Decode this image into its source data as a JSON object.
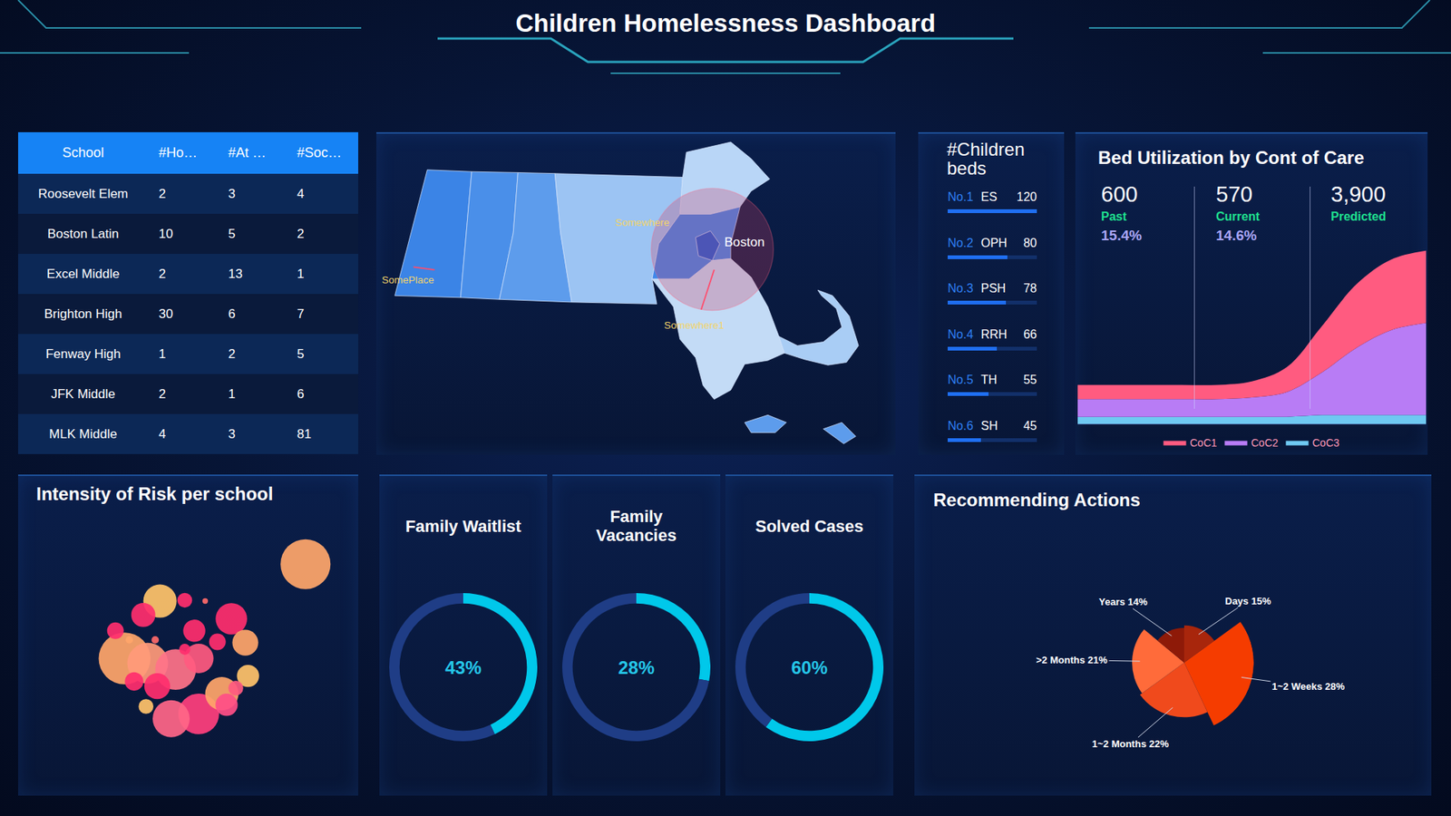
{
  "title": "Children Homelessness Dashboard",
  "table": {
    "columns": [
      "School",
      "#Ho…",
      "#At …",
      "#Soc…"
    ],
    "rows": [
      [
        "Roosevelt Elem",
        2,
        3,
        4
      ],
      [
        "Boston Latin",
        10,
        5,
        2
      ],
      [
        "Excel Middle",
        2,
        13,
        1
      ],
      [
        "Brighton High",
        30,
        6,
        7
      ],
      [
        "Fenway High",
        1,
        2,
        5
      ],
      [
        "JFK Middle",
        2,
        1,
        6
      ],
      [
        "MLK Middle",
        4,
        3,
        81
      ]
    ]
  },
  "map": {
    "labels": [
      "Somewhere",
      "SomePlace",
      "Somewhere1",
      "Boston"
    ]
  },
  "chart_data": [
    {
      "type": "bar",
      "orientation": "horizontal",
      "title": "#Children beds",
      "ranks": [
        "No.1",
        "No.2",
        "No.3",
        "No.4",
        "No.5",
        "No.6"
      ],
      "categories": [
        "ES",
        "OPH",
        "PSH",
        "RRH",
        "TH",
        "SH"
      ],
      "values": [
        120,
        80,
        78,
        66,
        55,
        45
      ],
      "xlim": [
        0,
        120
      ],
      "tick_labels": false,
      "data_labels": true,
      "color": "#1f6ff2"
    },
    {
      "type": "area",
      "stacked": true,
      "title": "Bed Utilization by Cont of Care",
      "stats": [
        {
          "value": "600",
          "label": "Past",
          "change": "15.4%"
        },
        {
          "value": "570",
          "label": "Current",
          "change": "14.6%"
        },
        {
          "value": "3,900",
          "label": "Predicted"
        }
      ],
      "x": [
        0,
        1,
        2,
        3,
        4,
        5,
        6,
        7,
        8,
        9,
        10
      ],
      "xlim": [
        0,
        10
      ],
      "ylim": [
        0,
        100
      ],
      "tick_labels": false,
      "grid": false,
      "legend": "bottom",
      "series": [
        {
          "name": "CoC1",
          "color": "#ff5b80",
          "values": [
            8,
            8,
            8,
            8,
            8,
            9,
            14,
            26,
            36,
            40,
            41
          ]
        },
        {
          "name": "CoC2",
          "color": "#b87cf5",
          "values": [
            10,
            10,
            10,
            10,
            10,
            11,
            14,
            24,
            38,
            48,
            52
          ]
        },
        {
          "name": "CoC3",
          "color": "#6fc9f2",
          "values": [
            4,
            4,
            4,
            4,
            4,
            4,
            4,
            5,
            5,
            5,
            5
          ]
        }
      ]
    },
    {
      "type": "scatter",
      "marker": "bubble",
      "title": "Intensity of Risk per school",
      "xlim": [
        0,
        100
      ],
      "ylim": [
        0,
        100
      ],
      "tick_labels": false,
      "grid": false,
      "x": [
        84.5,
        41.7,
        31.3,
        38.1,
        46.3,
        53.1,
        45.0,
        62.7,
        66.8,
        59.9,
        36.8,
        51.8,
        58.6,
        53.1,
        67.6,
        49.0,
        37.6,
        40.9,
        28.6,
        61.3,
        55.0,
        40.3,
        32.7,
        34.1,
        49.0,
        64.0
      ],
      "y": [
        84.0,
        70.7,
        50.0,
        48.3,
        46.0,
        30.0,
        28.3,
        64.3,
        55.7,
        37.3,
        65.7,
        60.0,
        56.0,
        50.0,
        43.7,
        71.0,
        32.7,
        40.0,
        60.0,
        33.3,
        70.7,
        56.7,
        56.7,
        41.7,
        53.3,
        39.3
      ],
      "sizes": [
        54,
        36,
        56,
        44,
        44,
        44,
        40,
        34,
        28,
        36,
        26,
        24,
        18,
        32,
        24,
        16,
        16,
        28,
        18,
        24,
        6,
        8,
        8,
        20,
        12,
        16
      ],
      "colors": [
        "#ffa66b",
        "#ffc36b",
        "#ffa66b",
        "#ff9a7a",
        "#ff7389",
        "#ff3f7d",
        "#ff6688",
        "#ff2e6e",
        "#ffa66b",
        "#ffa66b",
        "#ff2e6e",
        "#ff2e6e",
        "#ff2e6e",
        "#ff5a80",
        "#ffc36b",
        "#ff2e6e",
        "#ffc36b",
        "#ff2e6e",
        "#ff2e6e",
        "#ff4f86",
        "#ff6b6b",
        "#ff6b6b",
        "#ffa66b",
        "#ff2e6e",
        "#ff2e6e",
        "#ff5a80"
      ]
    },
    {
      "type": "donut",
      "title": "Family Waitlist",
      "values": [
        43
      ],
      "value_labels": [
        "43%"
      ],
      "ylim": [
        0,
        100
      ],
      "color": "#00c8ea"
    },
    {
      "type": "donut",
      "title": "Family Vacancies",
      "values": [
        28
      ],
      "value_labels": [
        "28%"
      ],
      "ylim": [
        0,
        100
      ],
      "color": "#00c8ea"
    },
    {
      "type": "donut",
      "title": "Solved Cases",
      "values": [
        60
      ],
      "value_labels": [
        "60%"
      ],
      "ylim": [
        0,
        100
      ],
      "color": "#00c8ea"
    },
    {
      "type": "pie",
      "marker": "rose",
      "title": "Recommending Actions",
      "categories": [
        "Days",
        "1~2 Weeks",
        "1~2 Months",
        ">2 Months",
        "Years"
      ],
      "values": [
        15,
        28,
        22,
        21,
        14
      ],
      "value_labels": [
        "Days 15%",
        "1~2 Weeks 28%",
        "1~2 Months 22%",
        ">2 Months 21%",
        "Years 14%"
      ],
      "colors": [
        "#a8260c",
        "#f53c00",
        "#f04a1c",
        "#ff6b3a",
        "#8e1a08"
      ],
      "ylim": [
        0,
        28
      ],
      "tick_labels": false
    }
  ]
}
